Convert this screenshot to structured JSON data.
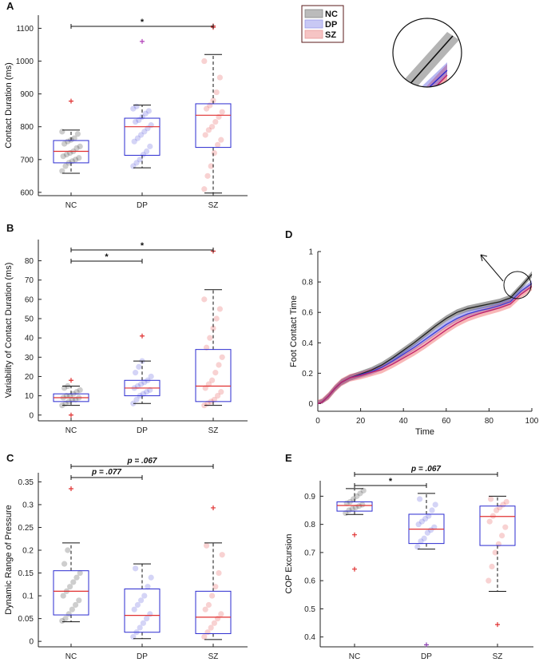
{
  "colors": {
    "NC": "#222222",
    "DP": "#3b3bd6",
    "SZ": "#e03030",
    "box": "#2b2bd0",
    "median": "#e03030",
    "outlier": "#e03030"
  },
  "legend": {
    "items": [
      "NC",
      "DP",
      "SZ"
    ],
    "placement": "top-center"
  },
  "chart_data": [
    {
      "panel": "A",
      "type": "box",
      "ylabel": "Contact Duration (ms)",
      "ylim": [
        590,
        1140
      ],
      "yticks": [
        600,
        700,
        800,
        900,
        1000,
        1100
      ],
      "categories": [
        "NC",
        "DP",
        "SZ"
      ],
      "boxes": [
        {
          "q1": 690,
          "median": 725,
          "q3": 758,
          "whisker_low": 658,
          "whisker_high": 790,
          "outliers": [
            878
          ]
        },
        {
          "q1": 713,
          "median": 800,
          "q3": 826,
          "whisker_low": 675,
          "whisker_high": 866,
          "outliers": [
            1060
          ]
        },
        {
          "q1": 737,
          "median": 835,
          "q3": 870,
          "whisker_low": 598,
          "whisker_high": 1020,
          "outliers": [
            1103,
            1107
          ]
        }
      ],
      "points": [
        [
          665,
          680,
          690,
          695,
          700,
          705,
          710,
          715,
          720,
          725,
          735,
          740,
          748,
          755,
          760,
          765,
          778,
          785
        ],
        [
          680,
          690,
          700,
          715,
          725,
          740,
          755,
          765,
          775,
          785,
          795,
          805,
          815,
          820,
          830,
          840,
          848,
          855,
          862
        ],
        [
          610,
          650,
          680,
          720,
          745,
          760,
          775,
          790,
          800,
          815,
          830,
          845,
          855,
          865,
          880,
          905,
          950,
          1000
        ]
      ],
      "comparisons": [
        {
          "from": "NC",
          "to": "SZ",
          "label": "*"
        }
      ]
    },
    {
      "panel": "B",
      "type": "box",
      "ylabel": "Variability of Contact Duration (ms)",
      "ylim": [
        -3,
        91
      ],
      "yticks": [
        0,
        10,
        20,
        30,
        40,
        50,
        60,
        70,
        80
      ],
      "categories": [
        "NC",
        "DP",
        "SZ"
      ],
      "boxes": [
        {
          "q1": 7,
          "median": 9,
          "q3": 11,
          "whisker_low": 5,
          "whisker_high": 15,
          "outliers": [
            18,
            0
          ]
        },
        {
          "q1": 10,
          "median": 14,
          "q3": 18,
          "whisker_low": 6,
          "whisker_high": 28,
          "outliers": [
            41
          ]
        },
        {
          "q1": 7,
          "median": 15,
          "q3": 34,
          "whisker_low": 5,
          "whisker_high": 65,
          "outliers": [
            85
          ]
        }
      ],
      "points": [
        [
          5,
          6,
          7,
          8,
          8,
          9,
          9,
          10,
          10,
          11,
          12,
          13,
          14,
          15
        ],
        [
          6,
          8,
          10,
          11,
          12,
          13,
          14,
          15,
          16,
          17,
          18,
          20,
          22,
          25,
          28
        ],
        [
          5,
          6,
          7,
          8,
          10,
          12,
          14,
          16,
          18,
          22,
          26,
          30,
          35,
          40,
          45,
          50,
          55,
          60
        ]
      ],
      "comparisons": [
        {
          "from": "NC",
          "to": "DP",
          "label": "*"
        },
        {
          "from": "NC",
          "to": "SZ",
          "label": "*"
        }
      ]
    },
    {
      "panel": "C",
      "type": "box",
      "ylabel": "Dynamic Range of Pressure",
      "ylim": [
        -0.012,
        0.37
      ],
      "yticks": [
        0,
        0.05,
        0.1,
        0.15,
        0.2,
        0.25,
        0.3,
        0.35
      ],
      "ytick_labels": [
        "0",
        "0.05",
        "0.1",
        "0.15",
        "0.2",
        "0.25",
        "0.3",
        "0.35"
      ],
      "categories": [
        "NC",
        "DP",
        "SZ"
      ],
      "boxes": [
        {
          "q1": 0.058,
          "median": 0.11,
          "q3": 0.155,
          "whisker_low": 0.043,
          "whisker_high": 0.216,
          "outliers": [
            0.335
          ]
        },
        {
          "q1": 0.02,
          "median": 0.057,
          "q3": 0.115,
          "whisker_low": 0.006,
          "whisker_high": 0.17,
          "outliers": []
        },
        {
          "q1": 0.017,
          "median": 0.053,
          "q3": 0.11,
          "whisker_low": 0.004,
          "whisker_high": 0.216,
          "outliers": [
            0.293
          ]
        }
      ],
      "points": [
        [
          0.045,
          0.05,
          0.06,
          0.07,
          0.08,
          0.09,
          0.1,
          0.11,
          0.12,
          0.13,
          0.14,
          0.15,
          0.17,
          0.2
        ],
        [
          0.01,
          0.02,
          0.03,
          0.04,
          0.05,
          0.06,
          0.07,
          0.08,
          0.09,
          0.1,
          0.12,
          0.14,
          0.16
        ],
        [
          0.01,
          0.02,
          0.03,
          0.04,
          0.05,
          0.06,
          0.07,
          0.08,
          0.1,
          0.12,
          0.15,
          0.19,
          0.21
        ]
      ],
      "comparisons": [
        {
          "from": "NC",
          "to": "DP",
          "label": "p = .077"
        },
        {
          "from": "NC",
          "to": "SZ",
          "label": "p = .067"
        }
      ]
    },
    {
      "panel": "D",
      "type": "line",
      "xlabel": "Time",
      "ylabel": "Foot Contact Time",
      "xlim": [
        0,
        100
      ],
      "ylim": [
        -0.05,
        1.0
      ],
      "xticks": [
        0,
        20,
        40,
        60,
        80,
        100
      ],
      "yticks": [
        0,
        0.2,
        0.4,
        0.6,
        0.8,
        1
      ],
      "x": [
        0,
        2,
        5,
        8,
        11,
        15,
        20,
        25,
        30,
        35,
        40,
        45,
        50,
        55,
        60,
        65,
        70,
        75,
        80,
        85,
        90,
        95,
        100
      ],
      "series": [
        {
          "name": "NC",
          "values": [
            0,
            0.01,
            0.05,
            0.1,
            0.14,
            0.17,
            0.195,
            0.22,
            0.255,
            0.3,
            0.35,
            0.4,
            0.455,
            0.51,
            0.56,
            0.6,
            0.625,
            0.64,
            0.655,
            0.67,
            0.695,
            0.77,
            0.85
          ],
          "band": 0.02
        },
        {
          "name": "DP",
          "values": [
            0,
            0.01,
            0.05,
            0.1,
            0.14,
            0.17,
            0.19,
            0.21,
            0.24,
            0.28,
            0.325,
            0.37,
            0.42,
            0.47,
            0.52,
            0.56,
            0.59,
            0.61,
            0.625,
            0.645,
            0.67,
            0.74,
            0.79
          ],
          "band": 0.02
        },
        {
          "name": "SZ",
          "values": [
            0,
            0.01,
            0.05,
            0.1,
            0.14,
            0.17,
            0.185,
            0.205,
            0.225,
            0.26,
            0.3,
            0.34,
            0.385,
            0.435,
            0.485,
            0.53,
            0.565,
            0.59,
            0.61,
            0.63,
            0.655,
            0.72,
            0.77
          ],
          "band": 0.025
        }
      ],
      "inset": "magnified view of curves near Time 100"
    },
    {
      "panel": "E",
      "type": "box",
      "ylabel": "COP Excursion",
      "ylim": [
        0.365,
        0.955
      ],
      "yticks": [
        0.4,
        0.5,
        0.6,
        0.7,
        0.8,
        0.9
      ],
      "categories": [
        "NC",
        "DP",
        "SZ"
      ],
      "boxes": [
        {
          "q1": 0.847,
          "median": 0.867,
          "q3": 0.88,
          "whisker_low": 0.835,
          "whisker_high": 0.927,
          "outliers": [
            0.763,
            0.641
          ]
        },
        {
          "q1": 0.732,
          "median": 0.783,
          "q3": 0.836,
          "whisker_low": 0.712,
          "whisker_high": 0.91,
          "outliers": [
            0.372
          ]
        },
        {
          "q1": 0.725,
          "median": 0.828,
          "q3": 0.865,
          "whisker_low": 0.562,
          "whisker_high": 0.9,
          "outliers": [
            0.444
          ]
        }
      ],
      "points": [
        [
          0.84,
          0.85,
          0.855,
          0.86,
          0.865,
          0.87,
          0.875,
          0.88,
          0.89,
          0.9,
          0.91,
          0.92
        ],
        [
          0.72,
          0.74,
          0.75,
          0.77,
          0.78,
          0.79,
          0.8,
          0.81,
          0.82,
          0.83,
          0.85,
          0.87,
          0.89
        ],
        [
          0.6,
          0.65,
          0.7,
          0.73,
          0.76,
          0.79,
          0.81,
          0.83,
          0.85,
          0.86,
          0.87,
          0.88,
          0.89
        ]
      ],
      "comparisons": [
        {
          "from": "NC",
          "to": "DP",
          "label": "*"
        },
        {
          "from": "NC",
          "to": "SZ",
          "label": "p = .067"
        }
      ]
    }
  ]
}
